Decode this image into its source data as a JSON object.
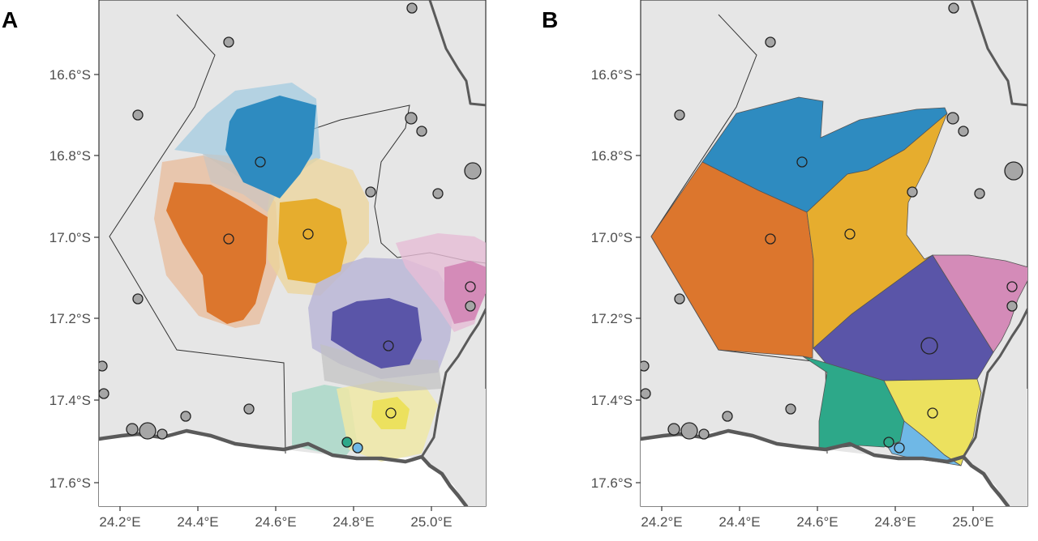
{
  "panels": [
    {
      "label": "A",
      "style": "probability-surface"
    },
    {
      "label": "B",
      "style": "voronoi-polygons"
    }
  ],
  "x_ticks": [
    "24.2°E",
    "24.4°E",
    "24.6°E",
    "24.8°E",
    "25.0°E"
  ],
  "y_ticks": [
    "16.6°S",
    "16.8°S",
    "17.0°S",
    "17.2°S",
    "17.4°S",
    "17.6°S"
  ],
  "colors": {
    "blue": "#2e8bc0",
    "orange": "#dc762d",
    "gold": "#e6ad2e",
    "purple": "#5a55a8",
    "pink": "#d48bb8",
    "green": "#2da889",
    "yellow": "#ece15e",
    "lightblue": "#6fb8e6",
    "grey_site": "#a6a6a6"
  },
  "icons": {
    "site_marker": "circle-marker-icon",
    "country_border": "river-border-line"
  }
}
